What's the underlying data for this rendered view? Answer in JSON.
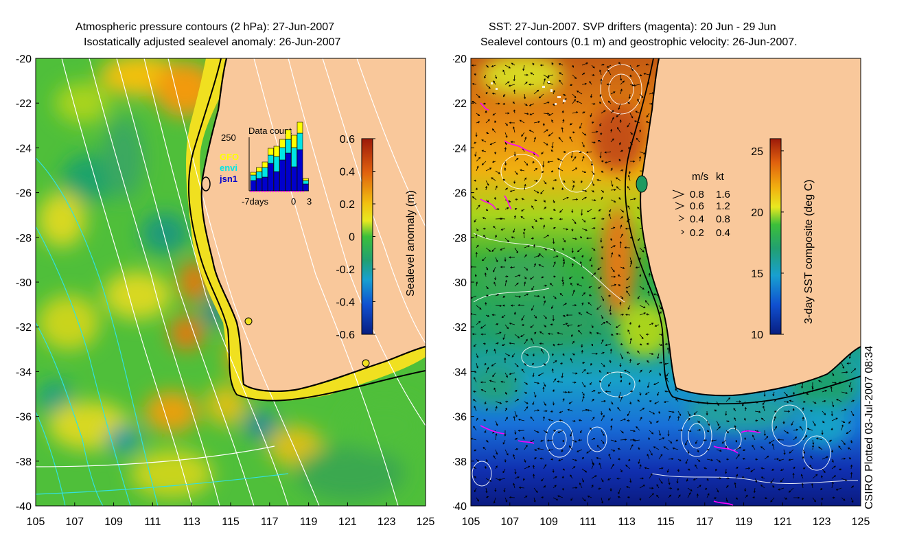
{
  "left_panel": {
    "title_line1": "Atmospheric pressure contours (2 hPa): 27-Jun-2007",
    "title_line2": "Isostatically adjusted sealevel anomaly: 26-Jun-2007",
    "y_ticks": [
      "-20",
      "-22",
      "-24",
      "-26",
      "-28",
      "-30",
      "-32",
      "-34",
      "-36",
      "-38",
      "-40"
    ],
    "x_ticks": [
      "105",
      "107",
      "109",
      "111",
      "113",
      "115",
      "117",
      "119",
      "121",
      "123",
      "125"
    ],
    "colorbar": {
      "label": "Sealevel anomaly (m)",
      "ticks": [
        "0.6",
        "0.4",
        "0.2",
        "0",
        "-0.2",
        "-0.4",
        "-0.6"
      ],
      "range": [
        -0.6,
        0.6
      ]
    },
    "inset": {
      "title": "Data count",
      "y_max_label": "250",
      "x_labels": [
        "-7days",
        "0",
        "3"
      ],
      "legend": [
        {
          "name": "GFO",
          "color": "#ffff00"
        },
        {
          "name": "envi",
          "color": "#00e5e5"
        },
        {
          "name": "jsn1",
          "color": "#0000cc"
        }
      ]
    }
  },
  "right_panel": {
    "title_line1": "SST: 27-Jun-2007. SVP drifters (magenta): 20 Jun - 29 Jun",
    "title_line2": "Sealevel contours (0.1 m) and geostrophic velocity: 26-Jun-2007.",
    "y_ticks": [
      "-20",
      "-22",
      "-24",
      "-26",
      "-28",
      "-30",
      "-32",
      "-34",
      "-36",
      "-38",
      "-40"
    ],
    "x_ticks": [
      "105",
      "107",
      "109",
      "111",
      "113",
      "115",
      "117",
      "119",
      "121",
      "123",
      "125"
    ],
    "colorbar": {
      "label": "3-day SST composite (deg C)",
      "ticks": [
        "25",
        "20",
        "15",
        "10"
      ],
      "range": [
        10,
        26
      ]
    },
    "velocity_legend": {
      "header_ms": "m/s",
      "header_kt": "kt",
      "rows": [
        {
          "ms": "0.8",
          "kt": "1.6"
        },
        {
          "ms": "0.6",
          "kt": "1.2"
        },
        {
          "ms": "0.4",
          "kt": "0.8"
        },
        {
          "ms": "0.2",
          "kt": "0.4"
        }
      ]
    }
  },
  "credit": "CSIRO Plotted 03-Jul-2007 08:34",
  "colors": {
    "land": "#f9c89b",
    "coast": "#000000",
    "contour": "#ffffff",
    "drifter": "#ff00ff"
  }
}
